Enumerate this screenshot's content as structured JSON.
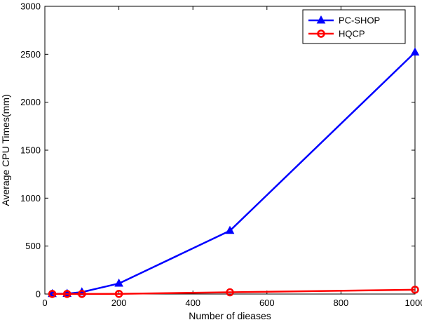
{
  "chart_data": {
    "type": "line",
    "xlabel": "Number of dieases",
    "ylabel": "Average CPU Times(mm)",
    "xlim": [
      0,
      1000
    ],
    "ylim": [
      0,
      3000
    ],
    "xticks": [
      0,
      200,
      400,
      600,
      800,
      1000
    ],
    "yticks": [
      0,
      500,
      1000,
      1500,
      2000,
      2500,
      3000
    ],
    "grid": false,
    "legend_position": "top-right",
    "series": [
      {
        "name": "PC-SHOP",
        "color": "#0000ff",
        "marker": "triangle-filled",
        "points": [
          [
            20,
            2
          ],
          [
            60,
            4
          ],
          [
            100,
            20
          ],
          [
            200,
            110
          ],
          [
            500,
            660
          ],
          [
            1000,
            2520
          ]
        ]
      },
      {
        "name": "HQCP",
        "color": "#ff0000",
        "marker": "circle-open",
        "points": [
          [
            20,
            1
          ],
          [
            60,
            1
          ],
          [
            100,
            1
          ],
          [
            200,
            2
          ],
          [
            500,
            18
          ],
          [
            1000,
            45
          ]
        ]
      }
    ]
  }
}
